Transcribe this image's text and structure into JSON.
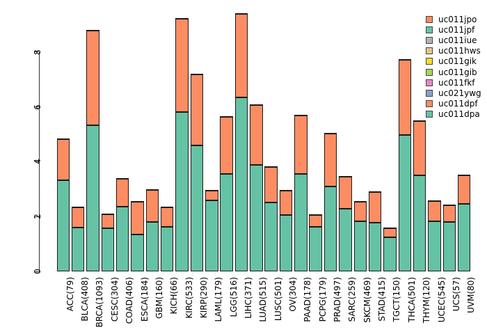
{
  "chart_data": {
    "type": "bar",
    "stacked": true,
    "title": "",
    "xlabel": "",
    "ylabel": "",
    "grid": false,
    "legend_position": "top-right",
    "yticks": [
      0,
      2,
      4,
      6,
      8
    ],
    "ylim": [
      0,
      9.5
    ],
    "categories": [
      "ACC(79)",
      "BLCA(408)",
      "BRCA(1093)",
      "CESC(304)",
      "COAD(406)",
      "ESCA(184)",
      "GBM(160)",
      "KICH(66)",
      "KIRC(533)",
      "KIRP(290)",
      "LAML(179)",
      "LGG(516)",
      "LIHC(371)",
      "LUAD(515)",
      "LUSC(501)",
      "OV(304)",
      "PAAD(178)",
      "PCPG(179)",
      "PRAD(497)",
      "SARC(259)",
      "SKCM(469)",
      "STAD(415)",
      "TGCT(150)",
      "THCA(501)",
      "THYM(120)",
      "UCEC(545)",
      "UCS(57)",
      "UVM(80)"
    ],
    "series": [
      {
        "name": "uc011dpa",
        "color": "#66C2A5",
        "values": [
          3.32,
          1.59,
          5.34,
          1.57,
          2.37,
          1.35,
          1.79,
          1.63,
          5.8,
          4.59,
          2.58,
          3.56,
          6.35,
          3.88,
          2.52,
          2.05,
          3.56,
          1.63,
          3.1,
          2.29,
          1.82,
          1.78,
          1.25,
          4.98,
          3.51,
          1.84,
          1.8,
          2.47
        ]
      },
      {
        "name": "uc011dpf",
        "color": "#FC8D62",
        "values": [
          1.52,
          0.78,
          3.46,
          0.55,
          1.02,
          1.21,
          1.21,
          0.72,
          3.43,
          2.62,
          0.38,
          2.11,
          3.06,
          2.2,
          1.31,
          0.91,
          2.14,
          0.44,
          1.95,
          1.2,
          0.74,
          1.14,
          0.36,
          2.75,
          2.01,
          0.74,
          0.63,
          1.06
        ]
      }
    ],
    "totals": [
      4.84,
      2.37,
      8.8,
      2.12,
      3.39,
      2.56,
      3.0,
      2.35,
      9.23,
      7.21,
      2.96,
      5.67,
      9.41,
      6.08,
      3.83,
      2.96,
      5.7,
      2.07,
      5.05,
      3.49,
      2.56,
      2.92,
      1.61,
      7.73,
      5.52,
      2.58,
      2.43,
      3.53
    ],
    "legend": [
      {
        "label": "uc011jpo",
        "color": "#FC8D62"
      },
      {
        "label": "uc011jpf",
        "color": "#66C2A5"
      },
      {
        "label": "uc011iue",
        "color": "#B3B3B3"
      },
      {
        "label": "uc011hws",
        "color": "#E5C494"
      },
      {
        "label": "uc011gik",
        "color": "#FFD92F"
      },
      {
        "label": "uc011gib",
        "color": "#A6D854"
      },
      {
        "label": "uc011fkf",
        "color": "#E78AC3"
      },
      {
        "label": "uc021ywg",
        "color": "#8DA0CB"
      },
      {
        "label": "uc011dpf",
        "color": "#FC8D62"
      },
      {
        "label": "uc011dpa",
        "color": "#66C2A5"
      }
    ]
  }
}
